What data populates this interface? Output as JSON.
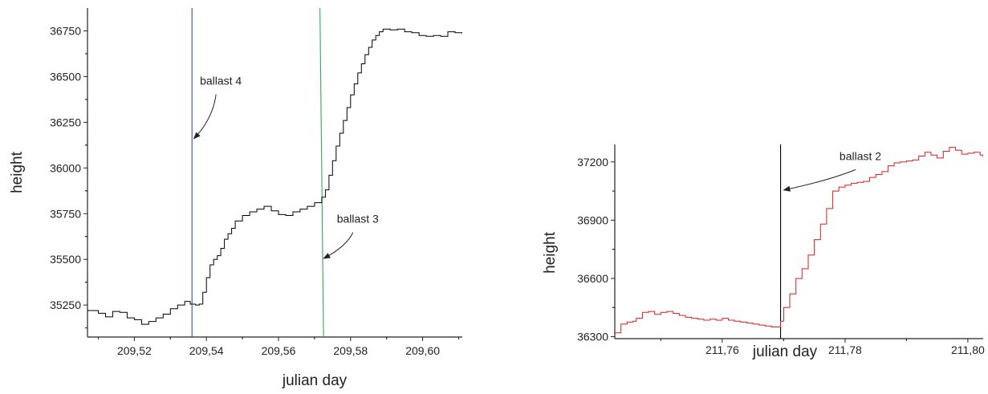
{
  "chart_data": [
    {
      "type": "line",
      "xlabel": "julian day",
      "ylabel": "height",
      "xlim": [
        209.507,
        209.611
      ],
      "ylim": [
        35075,
        36875
      ],
      "xticks": [
        209.52,
        209.54,
        209.56,
        209.58,
        209.6
      ],
      "xtick_labels": [
        "209,52",
        "209,54",
        "209,56",
        "209,58",
        "209,60"
      ],
      "yticks": [
        35250,
        35500,
        35750,
        36000,
        36250,
        36500,
        36750
      ],
      "ytick_labels": [
        "35250",
        "35500",
        "35750",
        "36000",
        "36250",
        "36500",
        "36750"
      ],
      "series": [
        {
          "color": "#000000",
          "points": [
            [
              209.507,
              35220
            ],
            [
              209.51,
              35205
            ],
            [
              209.512,
              35185
            ],
            [
              209.514,
              35215
            ],
            [
              209.516,
              35210
            ],
            [
              209.518,
              35180
            ],
            [
              209.52,
              35170
            ],
            [
              209.522,
              35145
            ],
            [
              209.524,
              35160
            ],
            [
              209.526,
              35180
            ],
            [
              209.528,
              35200
            ],
            [
              209.53,
              35230
            ],
            [
              209.532,
              35250
            ],
            [
              209.534,
              35270
            ],
            [
              209.5355,
              35255
            ],
            [
              209.537,
              35250
            ],
            [
              209.538,
              35255
            ],
            [
              209.539,
              35320
            ],
            [
              209.54,
              35400
            ],
            [
              209.541,
              35470
            ],
            [
              209.542,
              35500
            ],
            [
              209.543,
              35520
            ],
            [
              209.544,
              35560
            ],
            [
              209.545,
              35610
            ],
            [
              209.546,
              35640
            ],
            [
              209.547,
              35670
            ],
            [
              209.548,
              35710
            ],
            [
              209.55,
              35740
            ],
            [
              209.552,
              35760
            ],
            [
              209.554,
              35775
            ],
            [
              209.556,
              35790
            ],
            [
              209.558,
              35765
            ],
            [
              209.56,
              35745
            ],
            [
              209.562,
              35740
            ],
            [
              209.564,
              35760
            ],
            [
              209.566,
              35775
            ],
            [
              209.568,
              35790
            ],
            [
              209.57,
              35810
            ],
            [
              209.572,
              35840
            ],
            [
              209.573,
              35880
            ],
            [
              209.574,
              35960
            ],
            [
              209.575,
              36040
            ],
            [
              209.576,
              36120
            ],
            [
              209.577,
              36190
            ],
            [
              209.578,
              36260
            ],
            [
              209.579,
              36330
            ],
            [
              209.58,
              36400
            ],
            [
              209.581,
              36460
            ],
            [
              209.582,
              36520
            ],
            [
              209.583,
              36570
            ],
            [
              209.584,
              36620
            ],
            [
              209.585,
              36660
            ],
            [
              209.586,
              36700
            ],
            [
              209.587,
              36725
            ],
            [
              209.588,
              36745
            ],
            [
              209.589,
              36760
            ],
            [
              209.591,
              36755
            ],
            [
              209.593,
              36760
            ],
            [
              209.595,
              36745
            ],
            [
              209.597,
              36740
            ],
            [
              209.599,
              36725
            ],
            [
              209.601,
              36720
            ],
            [
              209.603,
              36725
            ],
            [
              209.605,
              36720
            ],
            [
              209.607,
              36745
            ],
            [
              209.609,
              36740
            ],
            [
              209.611,
              36735
            ]
          ]
        }
      ],
      "vertical_lines": [
        {
          "x_top": 209.536,
          "x_bottom": 209.536,
          "color": "#3b4fa8"
        },
        {
          "x_top": 209.5715,
          "x_bottom": 209.5725,
          "color": "#3aa35a"
        }
      ],
      "annotations": [
        {
          "text": "ballast 4",
          "x": 209.544,
          "y": 36455,
          "arrow_to": [
            209.5365,
            36160
          ]
        },
        {
          "text": "ballast 3",
          "x": 209.582,
          "y": 35700,
          "arrow_to": [
            209.5725,
            35505
          ]
        }
      ]
    },
    {
      "type": "line",
      "xlabel": "julian day",
      "ylabel": "height",
      "xlim": [
        211.7425,
        211.8025
      ],
      "ylim": [
        36290,
        37290
      ],
      "xticks": [
        211.76,
        211.78,
        211.8
      ],
      "xtick_labels": [
        "211,76",
        "211,78",
        "211,80"
      ],
      "yticks": [
        36300,
        36600,
        36900,
        37200
      ],
      "ytick_labels": [
        "36300",
        "36600",
        "36900",
        "37200"
      ],
      "series": [
        {
          "color": "#d81e1e",
          "points": [
            [
              211.7425,
              36320
            ],
            [
              211.7435,
              36365
            ],
            [
              211.7445,
              36375
            ],
            [
              211.7455,
              36380
            ],
            [
              211.746,
              36395
            ],
            [
              211.747,
              36425
            ],
            [
              211.748,
              36430
            ],
            [
              211.749,
              36415
            ],
            [
              211.75,
              36425
            ],
            [
              211.751,
              36430
            ],
            [
              211.752,
              36420
            ],
            [
              211.753,
              36410
            ],
            [
              211.754,
              36400
            ],
            [
              211.755,
              36395
            ],
            [
              211.756,
              36390
            ],
            [
              211.757,
              36385
            ],
            [
              211.758,
              36390
            ],
            [
              211.759,
              36385
            ],
            [
              211.76,
              36395
            ],
            [
              211.761,
              36385
            ],
            [
              211.762,
              36380
            ],
            [
              211.763,
              36375
            ],
            [
              211.764,
              36370
            ],
            [
              211.765,
              36365
            ],
            [
              211.766,
              36360
            ],
            [
              211.767,
              36355
            ],
            [
              211.768,
              36350
            ],
            [
              211.769,
              36350
            ],
            [
              211.7695,
              36380
            ],
            [
              211.77,
              36450
            ],
            [
              211.771,
              36520
            ],
            [
              211.772,
              36600
            ],
            [
              211.773,
              36650
            ],
            [
              211.774,
              36720
            ],
            [
              211.775,
              36800
            ],
            [
              211.776,
              36880
            ],
            [
              211.777,
              36960
            ],
            [
              211.778,
              37050
            ],
            [
              211.779,
              37070
            ],
            [
              211.78,
              37080
            ],
            [
              211.781,
              37090
            ],
            [
              211.782,
              37095
            ],
            [
              211.783,
              37100
            ],
            [
              211.784,
              37120
            ],
            [
              211.785,
              37135
            ],
            [
              211.786,
              37150
            ],
            [
              211.787,
              37180
            ],
            [
              211.788,
              37195
            ],
            [
              211.789,
              37200
            ],
            [
              211.79,
              37205
            ],
            [
              211.791,
              37210
            ],
            [
              211.792,
              37230
            ],
            [
              211.793,
              37250
            ],
            [
              211.794,
              37235
            ],
            [
              211.795,
              37220
            ],
            [
              211.796,
              37255
            ],
            [
              211.797,
              37275
            ],
            [
              211.798,
              37260
            ],
            [
              211.799,
              37240
            ],
            [
              211.8,
              37245
            ],
            [
              211.801,
              37250
            ],
            [
              211.802,
              37235
            ],
            [
              211.8025,
              37225
            ]
          ]
        }
      ],
      "vertical_lines": [
        {
          "x_top": 211.7695,
          "x_bottom": 211.7695,
          "color": "#000000"
        }
      ],
      "annotations": [
        {
          "text": "ballast 2",
          "x": 211.7825,
          "y": 37210,
          "arrow_to": [
            211.77,
            37055
          ]
        }
      ]
    }
  ]
}
